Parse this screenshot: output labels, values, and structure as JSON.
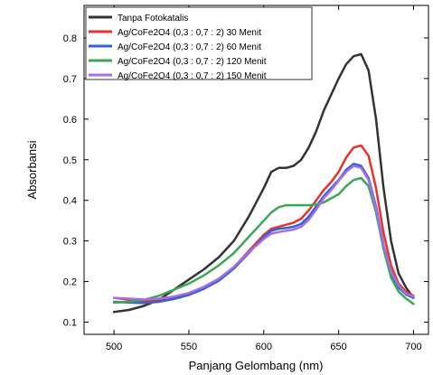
{
  "chart_data": {
    "type": "line",
    "title": "",
    "xlabel": "Panjang Gelombang (nm)",
    "ylabel": "Absorbansi",
    "xlim": [
      480,
      710
    ],
    "ylim": [
      0.07,
      0.88
    ],
    "xticks": [
      500,
      550,
      600,
      650,
      700
    ],
    "yticks": [
      0.1,
      0.2,
      0.3,
      0.4,
      0.5,
      0.6,
      0.7,
      0.8
    ],
    "xtick_labels": [
      "500",
      "550",
      "600",
      "650",
      "700"
    ],
    "ytick_labels": [
      "0.1",
      "0.2",
      "0.3",
      "0.4",
      "0.5",
      "0.6",
      "0.7",
      "0.8"
    ],
    "grid": false,
    "legend_position": "top-left",
    "series": [
      {
        "name": "Tanpa Fotokatalis",
        "color": "#333333",
        "points": [
          [
            500,
            0.125
          ],
          [
            510,
            0.13
          ],
          [
            520,
            0.14
          ],
          [
            530,
            0.155
          ],
          [
            540,
            0.18
          ],
          [
            550,
            0.205
          ],
          [
            560,
            0.23
          ],
          [
            570,
            0.26
          ],
          [
            580,
            0.3
          ],
          [
            590,
            0.36
          ],
          [
            600,
            0.43
          ],
          [
            605,
            0.47
          ],
          [
            610,
            0.48
          ],
          [
            615,
            0.48
          ],
          [
            620,
            0.485
          ],
          [
            625,
            0.5
          ],
          [
            630,
            0.53
          ],
          [
            635,
            0.57
          ],
          [
            640,
            0.62
          ],
          [
            645,
            0.66
          ],
          [
            650,
            0.7
          ],
          [
            655,
            0.735
          ],
          [
            660,
            0.755
          ],
          [
            665,
            0.76
          ],
          [
            670,
            0.72
          ],
          [
            675,
            0.6
          ],
          [
            680,
            0.43
          ],
          [
            685,
            0.3
          ],
          [
            690,
            0.22
          ],
          [
            695,
            0.185
          ],
          [
            700,
            0.16
          ]
        ]
      },
      {
        "name": "Ag/CoFe2O4 (0,3 : 0,7 : 2) 30 Menit",
        "color": "#e8322c",
        "points": [
          [
            500,
            0.16
          ],
          [
            510,
            0.155
          ],
          [
            520,
            0.152
          ],
          [
            530,
            0.153
          ],
          [
            540,
            0.16
          ],
          [
            550,
            0.17
          ],
          [
            560,
            0.185
          ],
          [
            570,
            0.205
          ],
          [
            580,
            0.235
          ],
          [
            590,
            0.275
          ],
          [
            600,
            0.315
          ],
          [
            605,
            0.33
          ],
          [
            610,
            0.335
          ],
          [
            615,
            0.34
          ],
          [
            620,
            0.345
          ],
          [
            625,
            0.355
          ],
          [
            630,
            0.375
          ],
          [
            635,
            0.4
          ],
          [
            640,
            0.425
          ],
          [
            645,
            0.445
          ],
          [
            650,
            0.47
          ],
          [
            655,
            0.505
          ],
          [
            660,
            0.53
          ],
          [
            665,
            0.535
          ],
          [
            670,
            0.51
          ],
          [
            675,
            0.43
          ],
          [
            680,
            0.32
          ],
          [
            685,
            0.24
          ],
          [
            690,
            0.195
          ],
          [
            695,
            0.175
          ],
          [
            700,
            0.165
          ]
        ]
      },
      {
        "name": "Ag/CoFe2O4 (0,3 : 0,7 : 2) 60 Menit",
        "color": "#2f63d6",
        "points": [
          [
            500,
            0.15
          ],
          [
            510,
            0.148
          ],
          [
            520,
            0.147
          ],
          [
            530,
            0.15
          ],
          [
            540,
            0.157
          ],
          [
            550,
            0.167
          ],
          [
            560,
            0.182
          ],
          [
            570,
            0.202
          ],
          [
            580,
            0.232
          ],
          [
            590,
            0.27
          ],
          [
            600,
            0.31
          ],
          [
            605,
            0.325
          ],
          [
            610,
            0.33
          ],
          [
            615,
            0.332
          ],
          [
            620,
            0.335
          ],
          [
            625,
            0.342
          ],
          [
            630,
            0.36
          ],
          [
            635,
            0.385
          ],
          [
            640,
            0.41
          ],
          [
            645,
            0.43
          ],
          [
            650,
            0.45
          ],
          [
            655,
            0.475
          ],
          [
            660,
            0.49
          ],
          [
            665,
            0.485
          ],
          [
            670,
            0.455
          ],
          [
            675,
            0.385
          ],
          [
            680,
            0.29
          ],
          [
            685,
            0.22
          ],
          [
            690,
            0.185
          ],
          [
            695,
            0.168
          ],
          [
            700,
            0.16
          ]
        ]
      },
      {
        "name": "Ag/CoFe2O4 (0,3 : 0,7 : 2) 120 Menit",
        "color": "#3aa852",
        "points": [
          [
            500,
            0.148
          ],
          [
            510,
            0.15
          ],
          [
            520,
            0.155
          ],
          [
            530,
            0.165
          ],
          [
            540,
            0.18
          ],
          [
            550,
            0.195
          ],
          [
            560,
            0.215
          ],
          [
            570,
            0.24
          ],
          [
            580,
            0.27
          ],
          [
            590,
            0.31
          ],
          [
            600,
            0.35
          ],
          [
            605,
            0.37
          ],
          [
            610,
            0.383
          ],
          [
            615,
            0.388
          ],
          [
            620,
            0.388
          ],
          [
            625,
            0.388
          ],
          [
            630,
            0.388
          ],
          [
            635,
            0.39
          ],
          [
            640,
            0.395
          ],
          [
            645,
            0.405
          ],
          [
            650,
            0.415
          ],
          [
            655,
            0.435
          ],
          [
            660,
            0.45
          ],
          [
            665,
            0.455
          ],
          [
            670,
            0.435
          ],
          [
            675,
            0.37
          ],
          [
            680,
            0.28
          ],
          [
            685,
            0.21
          ],
          [
            690,
            0.175
          ],
          [
            695,
            0.158
          ],
          [
            700,
            0.145
          ]
        ]
      },
      {
        "name": "Ag/CoFe2O4 (0,3 : 0,7 : 2) 150 Menit",
        "color": "#a66ee6",
        "points": [
          [
            500,
            0.16
          ],
          [
            510,
            0.158
          ],
          [
            520,
            0.156
          ],
          [
            530,
            0.158
          ],
          [
            540,
            0.163
          ],
          [
            550,
            0.172
          ],
          [
            560,
            0.187
          ],
          [
            570,
            0.207
          ],
          [
            580,
            0.236
          ],
          [
            590,
            0.272
          ],
          [
            600,
            0.305
          ],
          [
            605,
            0.318
          ],
          [
            610,
            0.322
          ],
          [
            615,
            0.325
          ],
          [
            620,
            0.328
          ],
          [
            625,
            0.335
          ],
          [
            630,
            0.352
          ],
          [
            635,
            0.377
          ],
          [
            640,
            0.405
          ],
          [
            645,
            0.425
          ],
          [
            650,
            0.448
          ],
          [
            655,
            0.47
          ],
          [
            660,
            0.485
          ],
          [
            665,
            0.48
          ],
          [
            670,
            0.45
          ],
          [
            675,
            0.38
          ],
          [
            680,
            0.29
          ],
          [
            685,
            0.225
          ],
          [
            690,
            0.19
          ],
          [
            695,
            0.17
          ],
          [
            700,
            0.163
          ]
        ]
      }
    ]
  }
}
